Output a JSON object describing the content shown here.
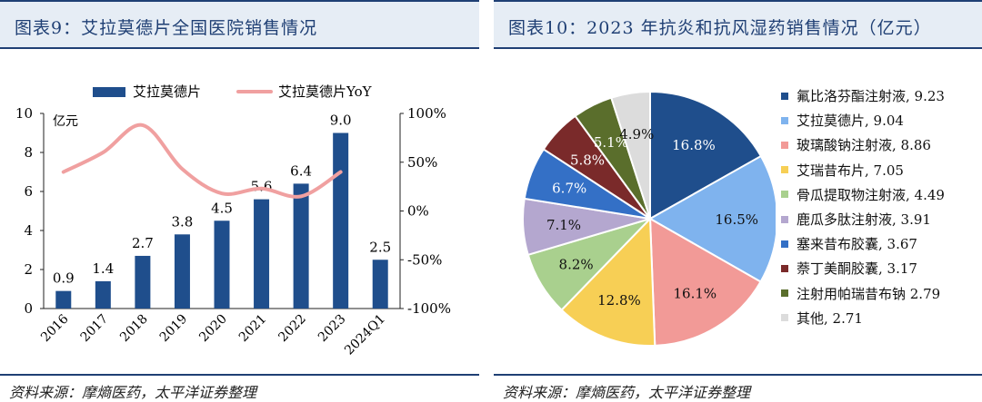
{
  "left": {
    "title": "图表9：艾拉莫德片全国医院销售情况",
    "source": "资料来源：摩熵医药，太平洋证券整理",
    "colors": {
      "bar": "#1f4e8c",
      "line": "#f0a0a0"
    },
    "chart_data": {
      "type": "bar",
      "categories": [
        "2016",
        "2017",
        "2018",
        "2019",
        "2020",
        "2021",
        "2022",
        "2023",
        "2024Q1"
      ],
      "series": [
        {
          "name": "艾拉莫德片",
          "type": "bar",
          "axis": "left",
          "values": [
            0.9,
            1.4,
            2.7,
            3.8,
            4.5,
            5.6,
            6.4,
            9.0,
            2.5
          ],
          "labels": [
            "0.9",
            "1.4",
            "2.7",
            "3.8",
            "4.5",
            "5.6",
            "6.4",
            "9.0",
            "2.5"
          ]
        },
        {
          "name": "艾拉莫德片YoY",
          "type": "line",
          "axis": "right",
          "values": [
            40,
            60,
            88,
            43,
            18,
            23,
            15,
            40,
            null
          ]
        }
      ],
      "yunit": "亿元",
      "ylim": [
        0,
        10
      ],
      "yticks": [
        "0",
        "2",
        "4",
        "6",
        "8",
        "10"
      ],
      "y2lim": [
        -100,
        100
      ],
      "y2ticks": [
        "-100%",
        "-50%",
        "0%",
        "50%",
        "100%"
      ],
      "legend": "top"
    }
  },
  "right": {
    "title": "图表10：2023 年抗炎和抗风湿药销售情况（亿元）",
    "source": "资料来源：摩熵医药，太平洋证券整理",
    "chart_data": {
      "type": "pie",
      "legend": "right",
      "slices": [
        {
          "name": "氟比洛芬酯注射液",
          "value": 9.23,
          "percent_label": "16.8%",
          "legend_label": "氟比洛芬酯注射液, 9.23",
          "color": "#1f4e8c",
          "label_color": "#ffffff"
        },
        {
          "name": "艾拉莫德片",
          "value": 9.04,
          "percent_label": "16.5%",
          "legend_label": "艾拉莫德片, 9.04",
          "color": "#7fb3ee",
          "label_color": "#111111"
        },
        {
          "name": "玻璃酸钠注射液",
          "value": 8.86,
          "percent_label": "16.1%",
          "legend_label": "玻璃酸钠注射液, 8.86",
          "color": "#f29a97",
          "label_color": "#111111"
        },
        {
          "name": "艾瑞昔布片",
          "value": 7.05,
          "percent_label": "12.8%",
          "legend_label": "艾瑞昔布片, 7.05",
          "color": "#f7cf55",
          "label_color": "#111111"
        },
        {
          "name": "骨瓜提取物注射液",
          "value": 4.49,
          "percent_label": "8.2%",
          "legend_label": "骨瓜提取物注射液, 4.49",
          "color": "#a9d08e",
          "label_color": "#111111"
        },
        {
          "name": "鹿瓜多肽注射液",
          "value": 3.91,
          "percent_label": "7.1%",
          "legend_label": "鹿瓜多肽注射液, 3.91",
          "color": "#b4a7cf",
          "label_color": "#111111"
        },
        {
          "name": "塞来昔布胶囊",
          "value": 3.67,
          "percent_label": "6.7%",
          "legend_label": "塞来昔布胶囊, 3.67",
          "color": "#3470c6",
          "label_color": "#ffffff"
        },
        {
          "name": "萘丁美酮胶囊",
          "value": 3.17,
          "percent_label": "5.8%",
          "legend_label": "萘丁美酮胶囊, 3.17",
          "color": "#7a2a2a",
          "label_color": "#ffffff"
        },
        {
          "name": "注射用帕瑞昔布钠",
          "value": 2.79,
          "percent_label": "5.1%",
          "legend_label": "注射用帕瑞昔布钠 2.79",
          "color": "#5a6e2c",
          "label_color": "#ffffff"
        },
        {
          "name": "其他",
          "value": 2.71,
          "percent_label": "4.9%",
          "legend_label": "其他, 2.71",
          "color": "#dcdcdc",
          "label_color": "#111111"
        }
      ]
    }
  }
}
